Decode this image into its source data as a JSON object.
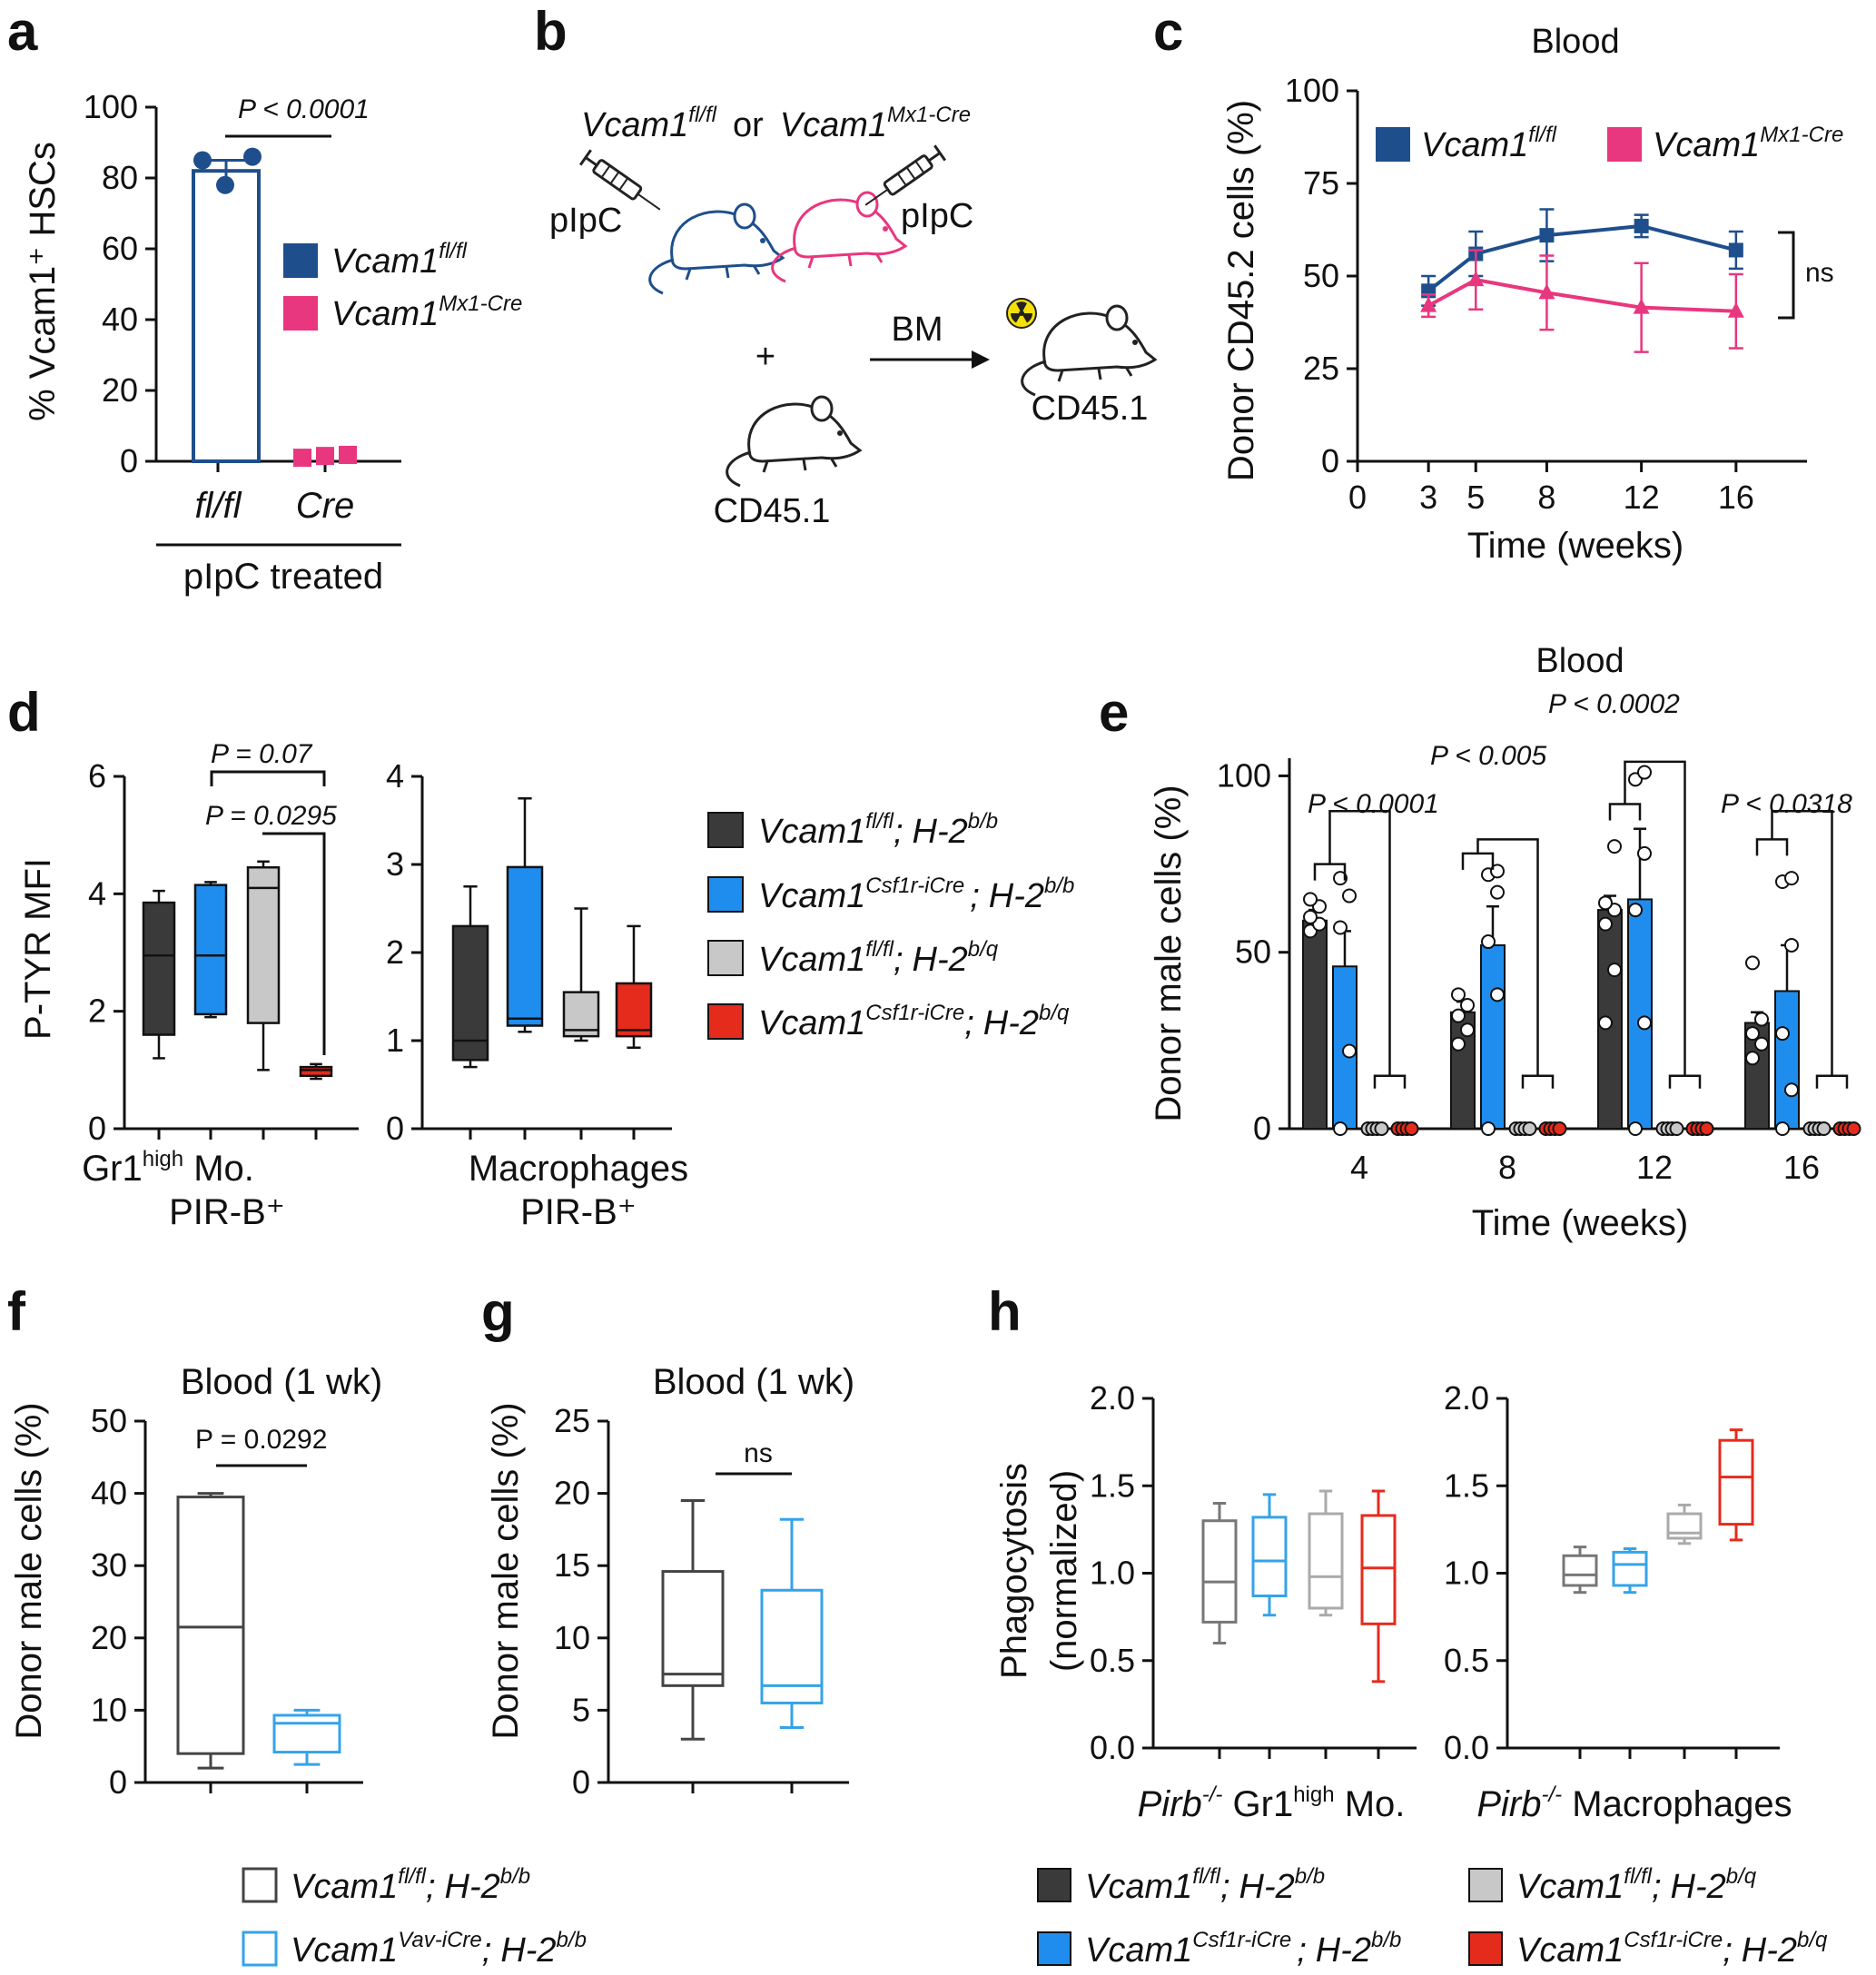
{
  "panels": {
    "a": "a",
    "b": "b",
    "c": "c",
    "d": "d",
    "e": "e",
    "f": "f",
    "g": "g",
    "h": "h"
  },
  "colors": {
    "fl_navy": "#1f4e8c",
    "cre_pink": "#e8377e",
    "dark_gray": "#3a3a3a",
    "blue": "#1f8ded",
    "light_gray": "#c8c8c8",
    "red": "#e52b1c",
    "box_black": "#444444",
    "box_light_blue": "#35a3e8",
    "radiation_yellow": "#f6e00b"
  },
  "genotypes": {
    "vcam_fl": {
      "base": "Vcam1",
      "sup": "fl/fl"
    },
    "vcam_mx1": {
      "base": "Vcam1",
      "sup": "Mx1-Cre"
    },
    "vcam_csf1r": {
      "base": "Vcam1",
      "sup": "Csf1r-iCre"
    },
    "vcam_vav": {
      "base": "Vcam1",
      "sup": "Vav-iCre"
    },
    "h2_bb": {
      "base": "H-2",
      "sup": "b/b"
    },
    "h2_bq": {
      "base": "H-2",
      "sup": "b/q"
    },
    "pirb": {
      "base": "Pirb",
      "sup": "-/-"
    },
    "or": "or",
    "semicolon": ";"
  },
  "panel_b": {
    "pipc_left": "pIpC",
    "pipc_right": "pIpC",
    "plus": "+",
    "arrow_label": "BM",
    "recipient_label": "CD45.1",
    "competitor_label": "CD45.1"
  },
  "chart_data": [
    {
      "panel": "a",
      "type": "bar",
      "ylabel": "% Vcam1⁺ HSCs",
      "ylim": [
        0,
        100
      ],
      "yticks": [
        "0",
        "20",
        "40",
        "60",
        "80",
        "100"
      ],
      "categories": [
        "fl/fl",
        "Cre"
      ],
      "group_label": "pIpC treated",
      "series": [
        {
          "name": "Vcam1fl/fl",
          "mean": 82,
          "sem": 3,
          "points": [
            85,
            86,
            78
          ]
        },
        {
          "name": "Vcam1Mx1-Cre",
          "mean": 1,
          "sem": 0.5,
          "points": [
            1,
            1.5,
            1.8
          ]
        }
      ],
      "annotation": "P < 0.0001",
      "legend": "right"
    },
    {
      "panel": "c",
      "type": "line",
      "title": "Blood",
      "xlabel": "Time (weeks)",
      "ylabel": "Donor CD45.2 cells (%)",
      "xlim": [
        0,
        19
      ],
      "ylim": [
        0,
        100
      ],
      "xticks": [
        "0",
        "3",
        "5",
        "8",
        "12",
        "16"
      ],
      "yticks": [
        "0",
        "25",
        "50",
        "75",
        "100"
      ],
      "x": [
        3,
        5,
        8,
        12,
        16
      ],
      "series": [
        {
          "name": "Vcam1fl/fl",
          "values": [
            46,
            56,
            61,
            63.5,
            57
          ],
          "err": [
            4,
            6,
            7,
            3,
            5
          ]
        },
        {
          "name": "Vcam1Mx1-Cre",
          "values": [
            42,
            49,
            45.5,
            41.5,
            40.5
          ],
          "err": [
            3,
            8,
            10,
            12,
            10
          ]
        }
      ],
      "annotation": "ns",
      "legend": "top"
    },
    {
      "panel": "d",
      "type": "box",
      "ylabel": "P-TYR MFI",
      "subplots": [
        {
          "ylim": [
            0,
            6
          ],
          "yticks": [
            "0",
            "2",
            "4",
            "6"
          ],
          "xlabel_main": "Gr1",
          "xlabel_sup": "high",
          "xlabel_rest": " Mo.",
          "xlabel2": "PIR-B⁺",
          "boxes": [
            {
              "name": "Vcam1fl/fl; H-2b/b",
              "min": 1.2,
              "q1": 1.6,
              "median": 2.95,
              "q3": 3.85,
              "max": 4.05
            },
            {
              "name": "Vcam1Csf1r-iCre; H-2b/b",
              "min": 1.9,
              "q1": 1.95,
              "median": 2.95,
              "q3": 4.15,
              "max": 4.2
            },
            {
              "name": "Vcam1fl/fl; H-2b/q",
              "min": 1.0,
              "q1": 1.8,
              "median": 4.1,
              "q3": 4.45,
              "max": 4.55
            },
            {
              "name": "Vcam1Csf1r-iCre; H-2b/q",
              "min": 0.85,
              "q1": 0.9,
              "median": 1.0,
              "q3": 1.05,
              "max": 1.1
            }
          ],
          "annotations": [
            "P = 0.07",
            "P = 0.0295"
          ]
        },
        {
          "ylim": [
            0,
            4
          ],
          "yticks": [
            "0",
            "1",
            "2",
            "3",
            "4"
          ],
          "xlabel": "Macrophages",
          "xlabel2": "PIR-B⁺",
          "boxes": [
            {
              "name": "Vcam1fl/fl; H-2b/b",
              "min": 0.7,
              "q1": 0.78,
              "median": 1.0,
              "q3": 2.3,
              "max": 2.75
            },
            {
              "name": "Vcam1Csf1r-iCre; H-2b/b",
              "min": 1.1,
              "q1": 1.17,
              "median": 1.25,
              "q3": 2.97,
              "max": 3.75
            },
            {
              "name": "Vcam1fl/fl; H-2b/q",
              "min": 1.0,
              "q1": 1.05,
              "median": 1.12,
              "q3": 1.55,
              "max": 2.5
            },
            {
              "name": "Vcam1Csf1r-iCre; H-2b/q",
              "min": 0.92,
              "q1": 1.05,
              "median": 1.12,
              "q3": 1.65,
              "max": 2.3
            }
          ]
        }
      ],
      "legend": "right"
    },
    {
      "panel": "e",
      "type": "bar",
      "title": "Blood",
      "xlabel": "Time (weeks)",
      "ylabel": "Donor male cells (%)",
      "ylim": [
        0,
        105
      ],
      "yticks": [
        "0",
        "50",
        "100"
      ],
      "categories": [
        "4",
        "8",
        "12",
        "16"
      ],
      "series": [
        {
          "name": "Vcam1fl/fl; H-2b/b",
          "values": [
            59,
            33,
            62,
            30
          ],
          "err": [
            3,
            3,
            4,
            3
          ]
        },
        {
          "name": "Vcam1Csf1r-iCre; H-2b/b",
          "values": [
            46,
            52,
            65,
            39
          ],
          "err": [
            10,
            11,
            20,
            13
          ]
        },
        {
          "name": "Vcam1fl/fl; H-2b/q",
          "values": [
            0,
            0,
            0,
            0
          ]
        },
        {
          "name": "Vcam1Csf1r-iCre; H-2b/q",
          "values": [
            0,
            0,
            0,
            0
          ]
        }
      ],
      "points": [
        [
          [
            56,
            58,
            60,
            63,
            65
          ],
          [
            0,
            22,
            57,
            66,
            71
          ],
          [
            0,
            0,
            0,
            0
          ],
          [
            0,
            0,
            0,
            0
          ]
        ],
        [
          [
            24,
            28,
            32,
            35,
            38
          ],
          [
            0,
            38,
            53,
            67,
            72,
            73
          ],
          [
            0,
            0,
            0,
            0
          ],
          [
            0,
            0,
            0,
            0
          ]
        ],
        [
          [
            30,
            45,
            58,
            62,
            64,
            80
          ],
          [
            0,
            30,
            62,
            78,
            99,
            101
          ],
          [
            0,
            0,
            0,
            0
          ],
          [
            0,
            0,
            0,
            0
          ]
        ],
        [
          [
            20,
            24,
            27,
            31,
            47
          ],
          [
            0,
            11,
            27,
            52,
            70,
            71
          ],
          [
            0,
            0,
            0,
            0
          ],
          [
            0,
            0,
            0,
            0
          ]
        ]
      ],
      "annotations": [
        "P < 0.0001",
        "P < 0.005",
        "P < 0.0002",
        "P < 0.0318"
      ]
    },
    {
      "panel": "f",
      "type": "box",
      "title": "Blood (1 wk)",
      "ylabel": "Donor male cells (%)",
      "ylim": [
        0,
        50
      ],
      "yticks": [
        "0",
        "10",
        "20",
        "30",
        "40",
        "50"
      ],
      "boxes": [
        {
          "name": "Vcam1fl/fl; H-2b/b",
          "min": 2,
          "q1": 4,
          "median": 21.5,
          "q3": 39.5,
          "max": 40
        },
        {
          "name": "Vcam1Vav-iCre; H-2b/b",
          "min": 2.5,
          "q1": 4.2,
          "median": 8.2,
          "q3": 9.3,
          "max": 10
        }
      ],
      "annotation": "P = 0.0292"
    },
    {
      "panel": "g",
      "type": "box",
      "title": "Blood (1 wk)",
      "ylabel": "Donor male cells (%)",
      "ylim": [
        0,
        25
      ],
      "yticks": [
        "0",
        "5",
        "10",
        "15",
        "20",
        "25"
      ],
      "boxes": [
        {
          "name": "Vcam1fl/fl; H-2b/b",
          "min": 3,
          "q1": 6.7,
          "median": 7.5,
          "q3": 14.6,
          "max": 19.5
        },
        {
          "name": "Vcam1Vav-iCre; H-2b/b",
          "min": 3.8,
          "q1": 5.5,
          "median": 6.7,
          "q3": 13.3,
          "max": 18.2
        }
      ],
      "annotation": "ns"
    },
    {
      "panel": "h",
      "type": "box",
      "ylabel": "Phagocytosis (normalized)",
      "ylabel_line1": "Phagocytosis",
      "ylabel_line2": "(normalized)",
      "subplots": [
        {
          "ylim": [
            0,
            2
          ],
          "yticks": [
            "0.0",
            "0.5",
            "1.0",
            "1.5",
            "2.0"
          ],
          "xlabel_rest": " Gr1",
          "xlabel_sup2": "high",
          "xlabel_end": " Mo.",
          "boxes": [
            {
              "name": "Vcam1fl/fl; H-2b/b",
              "min": 0.6,
              "q1": 0.72,
              "median": 0.95,
              "q3": 1.3,
              "max": 1.4
            },
            {
              "name": "Vcam1Csf1r-iCre; H-2b/b",
              "min": 0.76,
              "q1": 0.87,
              "median": 1.07,
              "q3": 1.32,
              "max": 1.45
            },
            {
              "name": "Vcam1fl/fl; H-2b/q",
              "min": 0.76,
              "q1": 0.8,
              "median": 0.98,
              "q3": 1.34,
              "max": 1.47
            },
            {
              "name": "Vcam1Csf1r-iCre; H-2b/q",
              "min": 0.38,
              "q1": 0.71,
              "median": 1.03,
              "q3": 1.33,
              "max": 1.47
            }
          ]
        },
        {
          "ylim": [
            0,
            2
          ],
          "yticks": [
            "0.0",
            "0.5",
            "1.0",
            "1.5",
            "2.0"
          ],
          "xlabel_rest": " Macrophages",
          "boxes": [
            {
              "name": "Vcam1fl/fl; H-2b/b",
              "min": 0.89,
              "q1": 0.93,
              "median": 0.99,
              "q3": 1.1,
              "max": 1.15
            },
            {
              "name": "Vcam1Csf1r-iCre; H-2b/b",
              "min": 0.89,
              "q1": 0.93,
              "median": 1.05,
              "q3": 1.12,
              "max": 1.14
            },
            {
              "name": "Vcam1fl/fl; H-2b/q",
              "min": 1.17,
              "q1": 1.2,
              "median": 1.23,
              "q3": 1.34,
              "max": 1.39
            },
            {
              "name": "Vcam1Csf1r-iCre; H-2b/q",
              "min": 1.19,
              "q1": 1.28,
              "median": 1.55,
              "q3": 1.76,
              "max": 1.82
            }
          ]
        }
      ],
      "legend": "bottom"
    }
  ]
}
